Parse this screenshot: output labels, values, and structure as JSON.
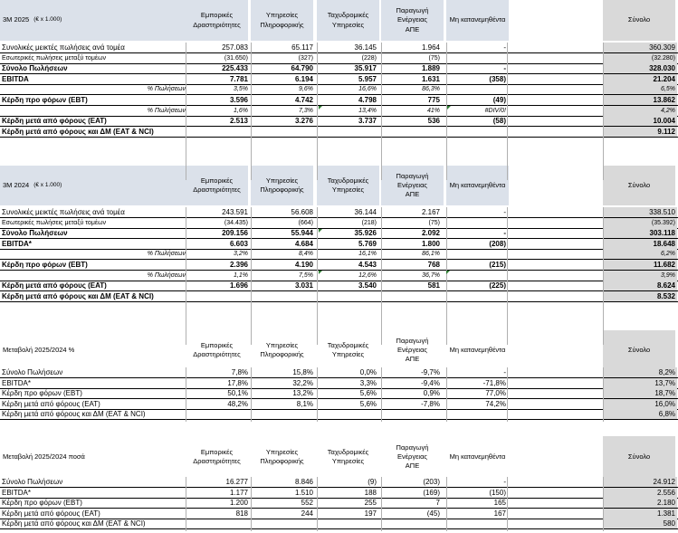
{
  "columns": [
    "Εμπορικές\nΔραστηριότητες",
    "Υπηρεσίες\nΠληροφορικής",
    "Ταχυδρομικές\nΥπηρεσίες",
    "Παραγωγή Ενέργειας\nΑΠΕ",
    "Μη κατανεμηθέντα",
    "Σύνολο"
  ],
  "block1": {
    "title": "3M 2025",
    "unit": "(€ x 1.000)",
    "rows": [
      {
        "label": "Συνολικές μεικτές πωλήσεις ανά τομέα",
        "v": [
          "257.083",
          "65.117",
          "36.145",
          "1.964",
          "-",
          "360.309"
        ]
      },
      {
        "label": "Εσωτερικές πωλήσεις μεταξύ τομέων",
        "v": [
          "(31.650)",
          "(327)",
          "(228)",
          "(75)",
          "",
          "(32.280)"
        ]
      },
      {
        "label": "Σύνολο Πωλήσεων",
        "v": [
          "225.433",
          "64.790",
          "35.917",
          "1.889",
          "-",
          "328.030"
        ]
      },
      {
        "label": "EBITDA",
        "v": [
          "7.781",
          "6.194",
          "5.957",
          "1.631",
          "(358)",
          "21.204"
        ]
      },
      {
        "label": "% Πωλήσεων",
        "v": [
          "3,5%",
          "9,6%",
          "16,6%",
          "86,3%",
          "",
          "6,5%"
        ]
      },
      {
        "label": "Κέρδη προ φόρων (EBT)",
        "v": [
          "3.596",
          "4.742",
          "4.798",
          "775",
          "(49)",
          "13.862"
        ]
      },
      {
        "label": "% Πωλήσεων",
        "v": [
          "1,6%",
          "7,3%",
          "13,4%",
          "41%",
          "#DIV/0!",
          "4,2%"
        ]
      },
      {
        "label": "Κέρδη μετά από φόρους (EAT)",
        "v": [
          "2.513",
          "3.276",
          "3.737",
          "536",
          "(58)",
          "10.004"
        ]
      },
      {
        "label": "Κέρδη μετά από φόρους και ΔΜ (EAT & NCI)",
        "v": [
          "",
          "",
          "",
          "",
          "",
          "9.112"
        ]
      }
    ]
  },
  "block2": {
    "title": "3M 2024",
    "unit": "(€ x 1.000)",
    "rows": [
      {
        "label": "Συνολικές μεικτές πωλήσεις ανά τομέα",
        "v": [
          "243.591",
          "56.608",
          "36.144",
          "2.167",
          "-",
          "338.510"
        ]
      },
      {
        "label": "Εσωτερικές πωλήσεις μεταξύ τομέων",
        "v": [
          "(34.435)",
          "(664)",
          "(218)",
          "(75)",
          "",
          "(35.392)"
        ]
      },
      {
        "label": "Σύνολο Πωλήσεων",
        "v": [
          "209.156",
          "55.944",
          "35.926",
          "2.092",
          "-",
          "303.118"
        ]
      },
      {
        "label": "EBITDA*",
        "v": [
          "6.603",
          "4.684",
          "5.769",
          "1.800",
          "(208)",
          "18.648"
        ]
      },
      {
        "label": "% Πωλήσεων",
        "v": [
          "3,2%",
          "8,4%",
          "16,1%",
          "86,1%",
          "",
          "6,2%"
        ]
      },
      {
        "label": "Κέρδη προ φόρων (EBT)",
        "v": [
          "2.396",
          "4.190",
          "4.543",
          "768",
          "(215)",
          "11.682"
        ]
      },
      {
        "label": "% Πωλήσεων",
        "v": [
          "1,1%",
          "7,5%",
          "12,6%",
          "36,7%",
          "",
          "3,9%"
        ]
      },
      {
        "label": "Κέρδη μετά από φόρους (EAT)",
        "v": [
          "1.696",
          "3.031",
          "3.540",
          "581",
          "(225)",
          "8.624"
        ]
      },
      {
        "label": "Κέρδη μετά από φόρους και ΔΜ (EAT & NCI)",
        "v": [
          "",
          "",
          "",
          "",
          "",
          "8.532"
        ]
      }
    ]
  },
  "block3": {
    "title": "Μεταβολή 2025/2024 %",
    "rows": [
      {
        "label": "Σύνολο Πωλήσεων",
        "v": [
          "7,8%",
          "15,8%",
          "0,0%",
          "-9,7%",
          "-",
          "8,2%"
        ]
      },
      {
        "label": "EBITDA*",
        "v": [
          "17,8%",
          "32,2%",
          "3,3%",
          "-9,4%",
          "-71,8%",
          "13,7%"
        ]
      },
      {
        "label": "Κέρδη προ φόρων (EBT)",
        "v": [
          "50,1%",
          "13,2%",
          "5,6%",
          "0,9%",
          "77,0%",
          "18,7%"
        ]
      },
      {
        "label": "Κέρδη μετά από φόρους (EAT)",
        "v": [
          "48,2%",
          "8,1%",
          "5,6%",
          "-7,8%",
          "74,2%",
          "16,0%"
        ]
      },
      {
        "label": "Κέρδη μετά από φόρους και ΔΜ (EAT & NCI)",
        "v": [
          "",
          "",
          "",
          "",
          "",
          "6,8%"
        ]
      }
    ]
  },
  "block4": {
    "title": "Μεταβολή 2025/2024 ποσά",
    "rows": [
      {
        "label": "Σύνολο Πωλήσεων",
        "v": [
          "16.277",
          "8.846",
          "(9)",
          "(203)",
          "-",
          "24.912"
        ]
      },
      {
        "label": "EBITDA*",
        "v": [
          "1.177",
          "1.510",
          "188",
          "(169)",
          "(150)",
          "2.556"
        ]
      },
      {
        "label": "Κέρδη προ φόρων (EBT)",
        "v": [
          "1.200",
          "552",
          "255",
          "7",
          "165",
          "2.180"
        ]
      },
      {
        "label": "Κέρδη μετά από φόρους (EAT)",
        "v": [
          "818",
          "244",
          "197",
          "(45)",
          "167",
          "1.381"
        ]
      },
      {
        "label": "Κέρδη μετά από φόρους και ΔΜ (EAT & NCI)",
        "v": [
          "",
          "",
          "",
          "",
          "",
          "580"
        ]
      }
    ]
  },
  "colors": {
    "header_fill": "#dbe1ea",
    "total_fill": "#d9d9d9",
    "error_marker": "#2e7d32"
  }
}
